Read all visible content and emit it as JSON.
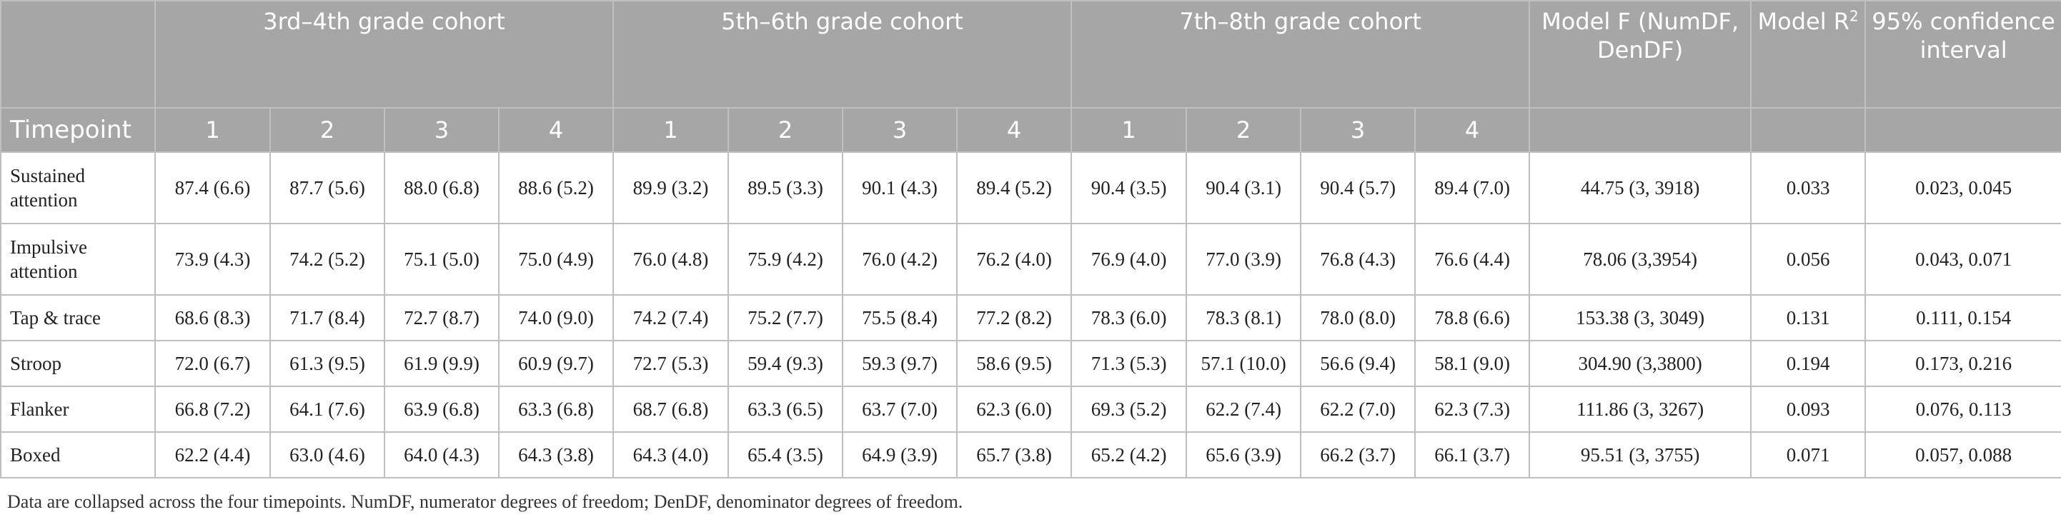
{
  "header": {
    "cohorts": [
      "3rd–4th grade cohort",
      "5th–6th grade cohort",
      "7th–8th grade cohort"
    ],
    "model_f": "Model F (NumDF, DenDF)",
    "model_r2_prefix": "Model R",
    "model_r2_sup": "2",
    "ci": "95% confidence interval",
    "timepoint_label": "Timepoint",
    "timepoints": [
      "1",
      "2",
      "3",
      "4"
    ]
  },
  "rows": [
    {
      "label": "Sustained attention",
      "c1": [
        "87.4 (6.6)",
        "87.7 (5.6)",
        "88.0 (6.8)",
        "88.6 (5.2)"
      ],
      "c2": [
        "89.9 (3.2)",
        "89.5 (3.3)",
        "90.1 (4.3)",
        "89.4 (5.2)"
      ],
      "c3": [
        "90.4 (3.5)",
        "90.4 (3.1)",
        "90.4 (5.7)",
        "89.4 (7.0)"
      ],
      "f": "44.75 (3, 3918)",
      "r2": "0.033",
      "ci": "0.023, 0.045"
    },
    {
      "label": "Impulsive attention",
      "c1": [
        "73.9 (4.3)",
        "74.2 (5.2)",
        "75.1 (5.0)",
        "75.0 (4.9)"
      ],
      "c2": [
        "76.0 (4.8)",
        "75.9 (4.2)",
        "76.0 (4.2)",
        "76.2 (4.0)"
      ],
      "c3": [
        "76.9 (4.0)",
        "77.0 (3.9)",
        "76.8 (4.3)",
        "76.6 (4.4)"
      ],
      "f": "78.06 (3,3954)",
      "r2": "0.056",
      "ci": "0.043, 0.071"
    },
    {
      "label": "Tap & trace",
      "c1": [
        "68.6 (8.3)",
        "71.7 (8.4)",
        "72.7 (8.7)",
        "74.0 (9.0)"
      ],
      "c2": [
        "74.2 (7.4)",
        "75.2 (7.7)",
        "75.5 (8.4)",
        "77.2 (8.2)"
      ],
      "c3": [
        "78.3 (6.0)",
        "78.3 (8.1)",
        "78.0 (8.0)",
        "78.8 (6.6)"
      ],
      "f": "153.38 (3, 3049)",
      "r2": "0.131",
      "ci": "0.111, 0.154"
    },
    {
      "label": "Stroop",
      "c1": [
        "72.0 (6.7)",
        "61.3 (9.5)",
        "61.9 (9.9)",
        "60.9 (9.7)"
      ],
      "c2": [
        "72.7 (5.3)",
        "59.4 (9.3)",
        "59.3 (9.7)",
        "58.6 (9.5)"
      ],
      "c3": [
        "71.3 (5.3)",
        "57.1 (10.0)",
        "56.6 (9.4)",
        "58.1 (9.0)"
      ],
      "f": "304.90 (3,3800)",
      "r2": "0.194",
      "ci": "0.173, 0.216"
    },
    {
      "label": "Flanker",
      "c1": [
        "66.8 (7.2)",
        "64.1 (7.6)",
        "63.9 (6.8)",
        "63.3 (6.8)"
      ],
      "c2": [
        "68.7 (6.8)",
        "63.3 (6.5)",
        "63.7 (7.0)",
        "62.3 (6.0)"
      ],
      "c3": [
        "69.3 (5.2)",
        "62.2 (7.4)",
        "62.2 (7.0)",
        "62.3 (7.3)"
      ],
      "f": "111.86 (3, 3267)",
      "r2": "0.093",
      "ci": "0.076, 0.113"
    },
    {
      "label": "Boxed",
      "c1": [
        "62.2 (4.4)",
        "63.0 (4.6)",
        "64.0 (4.3)",
        "64.3 (3.8)"
      ],
      "c2": [
        "64.3 (4.0)",
        "65.4 (3.5)",
        "64.9 (3.9)",
        "65.7 (3.8)"
      ],
      "c3": [
        "65.2 (4.2)",
        "65.6 (3.9)",
        "66.2 (3.7)",
        "66.1 (3.7)"
      ],
      "f": "95.51 (3, 3755)",
      "r2": "0.071",
      "ci": "0.057, 0.088"
    }
  ],
  "footnote": "Data are collapsed across the four timepoints. NumDF, numerator degrees of freedom; DenDF, denominator degrees of freedom.",
  "colors": {
    "header_bg": "#a6a6a6",
    "header_text": "#ffffff",
    "grid": "#bfbfbf",
    "body_text": "#222222"
  }
}
